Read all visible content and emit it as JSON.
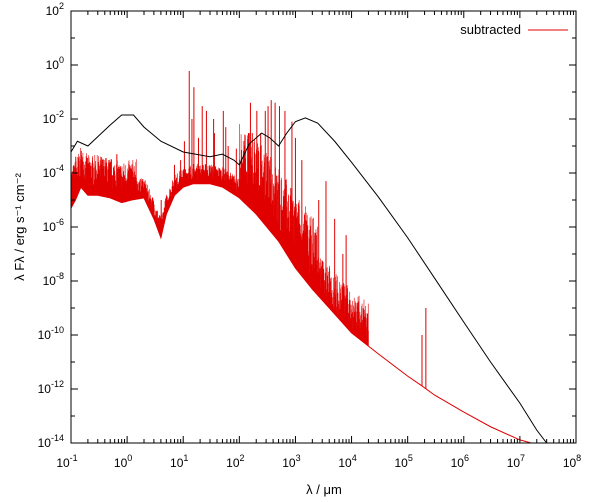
{
  "chart_data": {
    "type": "line",
    "title": "",
    "x_scale": "log",
    "y_scale": "log",
    "xlim": [
      0.1,
      100000000
    ],
    "ylim": [
      1e-14,
      100
    ],
    "xlabel": "λ / μm",
    "ylabel": "λ Fλ / erg s⁻¹ cm⁻²",
    "x_ticks": [
      {
        "value": 0.1,
        "label": "10",
        "exp": "-1"
      },
      {
        "value": 1,
        "label": "10",
        "exp": "0"
      },
      {
        "value": 10,
        "label": "10",
        "exp": "1"
      },
      {
        "value": 100,
        "label": "10",
        "exp": "2"
      },
      {
        "value": 1000,
        "label": "10",
        "exp": "3"
      },
      {
        "value": 10000,
        "label": "10",
        "exp": "4"
      },
      {
        "value": 100000,
        "label": "10",
        "exp": "5"
      },
      {
        "value": 1000000,
        "label": "10",
        "exp": "6"
      },
      {
        "value": 10000000,
        "label": "10",
        "exp": "7"
      },
      {
        "value": 100000000,
        "label": "10",
        "exp": "8"
      }
    ],
    "y_ticks": [
      {
        "value": 100,
        "label": "10",
        "exp": "2"
      },
      {
        "value": 1,
        "label": "10",
        "exp": "0"
      },
      {
        "value": 0.01,
        "label": "10",
        "exp": "-2"
      },
      {
        "value": 0.0001,
        "label": "10",
        "exp": "-4"
      },
      {
        "value": 1e-06,
        "label": "10",
        "exp": "-6"
      },
      {
        "value": 1e-08,
        "label": "10",
        "exp": "-8"
      },
      {
        "value": 1e-10,
        "label": "10",
        "exp": "-10"
      },
      {
        "value": 1e-12,
        "label": "10",
        "exp": "-12"
      },
      {
        "value": 1e-14,
        "label": "10",
        "exp": "-14"
      }
    ],
    "legend": {
      "position": "top-right",
      "entries": [
        {
          "label": "subtracted",
          "color": "#e00000"
        }
      ]
    },
    "grid": false,
    "series": [
      {
        "color": "#000000",
        "points": [
          [
            0.1,
            0.0006
          ],
          [
            0.13,
            0.0015
          ],
          [
            0.2,
            0.001
          ],
          [
            0.5,
            0.006
          ],
          [
            0.8,
            0.014
          ],
          [
            1.3,
            0.014
          ],
          [
            2,
            0.005
          ],
          [
            4,
            0.0015
          ],
          [
            10,
            0.0006
          ],
          [
            30,
            0.0004
          ],
          [
            50,
            0.0005
          ],
          [
            80,
            0.0003
          ],
          [
            100,
            0.0002
          ],
          [
            150,
            0.0012
          ],
          [
            250,
            0.003
          ],
          [
            350,
            0.002
          ],
          [
            500,
            0.001
          ],
          [
            700,
            0.003
          ],
          [
            1000,
            0.008
          ],
          [
            1500,
            0.011
          ],
          [
            2500,
            0.007
          ],
          [
            5000,
            0.0015
          ],
          [
            10000,
            0.00025
          ],
          [
            30000,
            1.3e-05
          ],
          [
            100000,
            4e-07
          ],
          [
            300000,
            1.3e-08
          ],
          [
            1000000,
            3e-10
          ],
          [
            3000000,
            1e-11
          ],
          [
            10000000,
            3e-13
          ],
          [
            20000000,
            3e-14
          ],
          [
            30000000,
            1e-14
          ]
        ]
      },
      {
        "name": "subtracted",
        "color": "#e00000",
        "points": [
          [
            0.1,
            5e-06
          ],
          [
            0.12,
            1e-05
          ],
          [
            0.15,
            3e-05
          ],
          [
            0.2,
            1.5e-05
          ],
          [
            0.3,
            1.5e-05
          ],
          [
            0.5,
            1.2e-05
          ],
          [
            0.8,
            8e-06
          ],
          [
            1.2,
            1e-05
          ],
          [
            2,
            1.2e-05
          ],
          [
            3,
            2e-06
          ],
          [
            4,
            4e-07
          ],
          [
            5,
            3e-06
          ],
          [
            7,
            1.5e-05
          ],
          [
            10,
            3e-05
          ],
          [
            15,
            4e-05
          ],
          [
            30,
            4e-05
          ],
          [
            50,
            3e-05
          ],
          [
            100,
            1.2e-05
          ],
          [
            200,
            3e-06
          ],
          [
            500,
            3e-07
          ],
          [
            1000,
            3e-08
          ],
          [
            2000,
            5e-09
          ],
          [
            5000,
            6e-10
          ],
          [
            10000,
            1.2e-10
          ],
          [
            30000,
            2e-11
          ],
          [
            100000,
            3e-12
          ],
          [
            180000,
            1.3e-12
          ],
          [
            300000,
            6e-13
          ],
          [
            1000000,
            1.4e-13
          ],
          [
            3000000,
            4e-14
          ],
          [
            10000000,
            1.3e-14
          ],
          [
            30000000,
            7e-15
          ]
        ]
      }
    ],
    "emission_lines": [
      {
        "x": 0.1216,
        "y": 0.0004
      },
      {
        "x": 0.1548,
        "y": 0.0003
      },
      {
        "x": 0.19,
        "y": 5e-05
      },
      {
        "x": 0.37,
        "y": 6e-05
      },
      {
        "x": 0.5007,
        "y": 0.0002
      },
      {
        "x": 0.6563,
        "y": 0.0005
      },
      {
        "x": 1.0,
        "y": 5e-05
      },
      {
        "x": 1.9,
        "y": 6e-05
      },
      {
        "x": 4.05,
        "y": 1e-05
      },
      {
        "x": 6.98,
        "y": 0.0002
      },
      {
        "x": 8.99,
        "y": 0.0003
      },
      {
        "x": 10.5,
        "y": 0.0015
      },
      {
        "x": 12.8,
        "y": 0.6
      },
      {
        "x": 14.3,
        "y": 0.01
      },
      {
        "x": 15.5,
        "y": 0.15
      },
      {
        "x": 18.7,
        "y": 0.002
      },
      {
        "x": 21.8,
        "y": 0.03
      },
      {
        "x": 25.9,
        "y": 0.02
      },
      {
        "x": 34.8,
        "y": 0.01
      },
      {
        "x": 36,
        "y": 0.003
      },
      {
        "x": 51.8,
        "y": 0.02
      },
      {
        "x": 57.3,
        "y": 0.005
      },
      {
        "x": 63.2,
        "y": 0.001
      },
      {
        "x": 88.4,
        "y": 0.0008
      },
      {
        "x": 121.9,
        "y": 0.0003
      },
      {
        "x": 145.5,
        "y": 0.003
      },
      {
        "x": 157.7,
        "y": 0.04
      },
      {
        "x": 170,
        "y": 0.003
      },
      {
        "x": 205,
        "y": 0.02
      },
      {
        "x": 240,
        "y": 0.003
      },
      {
        "x": 290,
        "y": 0.02
      },
      {
        "x": 325,
        "y": 0.03
      },
      {
        "x": 370,
        "y": 0.05
      },
      {
        "x": 434,
        "y": 0.04
      },
      {
        "x": 520,
        "y": 0.03
      },
      {
        "x": 650,
        "y": 0.02
      },
      {
        "x": 866,
        "y": 0.008
      },
      {
        "x": 1000,
        "y": 0.002
      },
      {
        "x": 1300,
        "y": 0.0003
      },
      {
        "x": 2600,
        "y": 1e-05
      },
      {
        "x": 3500,
        "y": 5e-05
      },
      {
        "x": 5000,
        "y": 2e-06
      },
      {
        "x": 7000,
        "y": 1e-07
      },
      {
        "x": 8000,
        "y": 5e-07
      },
      {
        "x": 180000,
        "y": 1e-10
      },
      {
        "x": 211000,
        "y": 1e-09
      }
    ]
  }
}
